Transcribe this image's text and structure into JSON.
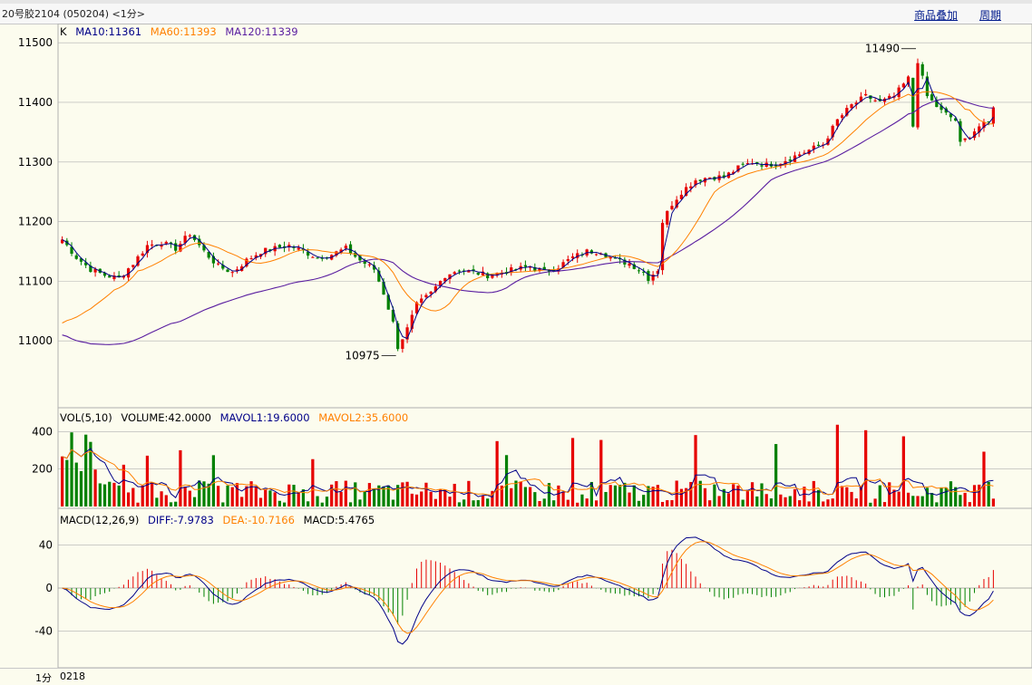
{
  "header": {
    "title": "20号胶2104 (050204) <1分>",
    "links": [
      "商品叠加",
      "周期"
    ]
  },
  "colors": {
    "up": "#e60000",
    "down": "#008000",
    "ma10": "#000088",
    "ma60": "#ff8000",
    "ma120": "#5a1ea0",
    "background": "#fcfcee",
    "grid": "#b0b0b0"
  },
  "footer": {
    "period": "1分",
    "x_start": "0218"
  },
  "chart_data": [
    {
      "type": "candlestick",
      "legend_prefix": "K",
      "indicators": [
        {
          "name": "MA10",
          "value": "11361"
        },
        {
          "name": "MA60",
          "value": "11393"
        },
        {
          "name": "MA120",
          "value": "11339"
        }
      ],
      "y_ticks": [
        "11500",
        "11400",
        "11300",
        "11200",
        "11100",
        "11000"
      ],
      "ylim": [
        10900,
        11520
      ],
      "annotations": [
        {
          "label": "11490",
          "index": 181,
          "value": 11490,
          "kind": "high"
        },
        {
          "label": "10975",
          "index": 71,
          "value": 10975,
          "kind": "low"
        }
      ],
      "anchors_close": [
        [
          0,
          11170
        ],
        [
          3,
          11140
        ],
        [
          6,
          11120
        ],
        [
          9,
          11110
        ],
        [
          12,
          11105
        ],
        [
          15,
          11130
        ],
        [
          18,
          11160
        ],
        [
          21,
          11165
        ],
        [
          24,
          11155
        ],
        [
          27,
          11180
        ],
        [
          30,
          11150
        ],
        [
          33,
          11125
        ],
        [
          36,
          11115
        ],
        [
          39,
          11135
        ],
        [
          42,
          11150
        ],
        [
          45,
          11155
        ],
        [
          48,
          11160
        ],
        [
          51,
          11150
        ],
        [
          54,
          11140
        ],
        [
          57,
          11145
        ],
        [
          60,
          11155
        ],
        [
          63,
          11135
        ],
        [
          66,
          11120
        ],
        [
          68,
          11080
        ],
        [
          70,
          11030
        ],
        [
          71,
          10990
        ],
        [
          73,
          11020
        ],
        [
          75,
          11060
        ],
        [
          78,
          11080
        ],
        [
          81,
          11110
        ],
        [
          84,
          11120
        ],
        [
          87,
          11115
        ],
        [
          90,
          11110
        ],
        [
          93,
          11115
        ],
        [
          96,
          11120
        ],
        [
          99,
          11125
        ],
        [
          102,
          11115
        ],
        [
          105,
          11125
        ],
        [
          108,
          11140
        ],
        [
          111,
          11150
        ],
        [
          114,
          11150
        ],
        [
          117,
          11135
        ],
        [
          120,
          11130
        ],
        [
          123,
          11115
        ],
        [
          124,
          11105
        ],
        [
          126,
          11120
        ],
        [
          127,
          11200
        ],
        [
          129,
          11230
        ],
        [
          131,
          11250
        ],
        [
          134,
          11270
        ],
        [
          137,
          11275
        ],
        [
          140,
          11275
        ],
        [
          143,
          11290
        ],
        [
          146,
          11300
        ],
        [
          149,
          11295
        ],
        [
          152,
          11300
        ],
        [
          155,
          11310
        ],
        [
          158,
          11320
        ],
        [
          161,
          11330
        ],
        [
          164,
          11370
        ],
        [
          167,
          11395
        ],
        [
          170,
          11410
        ],
        [
          173,
          11400
        ],
        [
          176,
          11410
        ],
        [
          179,
          11440
        ],
        [
          180,
          11360
        ],
        [
          181,
          11470
        ],
        [
          183,
          11410
        ],
        [
          186,
          11385
        ],
        [
          189,
          11370
        ],
        [
          190,
          11330
        ],
        [
          192,
          11345
        ],
        [
          194,
          11360
        ],
        [
          196,
          11365
        ],
        [
          197,
          11395
        ]
      ]
    },
    {
      "type": "bar",
      "legend_prefix": "VOL(5,10)",
      "indicators": [
        {
          "name": "VOLUME",
          "value": "42.0000"
        },
        {
          "name": "MAVOL1",
          "value": "19.6000"
        },
        {
          "name": "MAVOL2",
          "value": "35.6000"
        }
      ],
      "y_ticks": [
        "400",
        "200"
      ],
      "ylim": [
        0,
        470
      ],
      "last_value": 42
    },
    {
      "type": "bar",
      "legend_prefix": "MACD(12,26,9)",
      "indicators": [
        {
          "name": "DIFF",
          "value": "-7.9783"
        },
        {
          "name": "DEA",
          "value": "-10.7166"
        },
        {
          "name": "MACD",
          "value": "5.4765"
        }
      ],
      "y_ticks": [
        "40",
        "0",
        "-40"
      ],
      "ylim": [
        -66,
        66
      ]
    }
  ]
}
